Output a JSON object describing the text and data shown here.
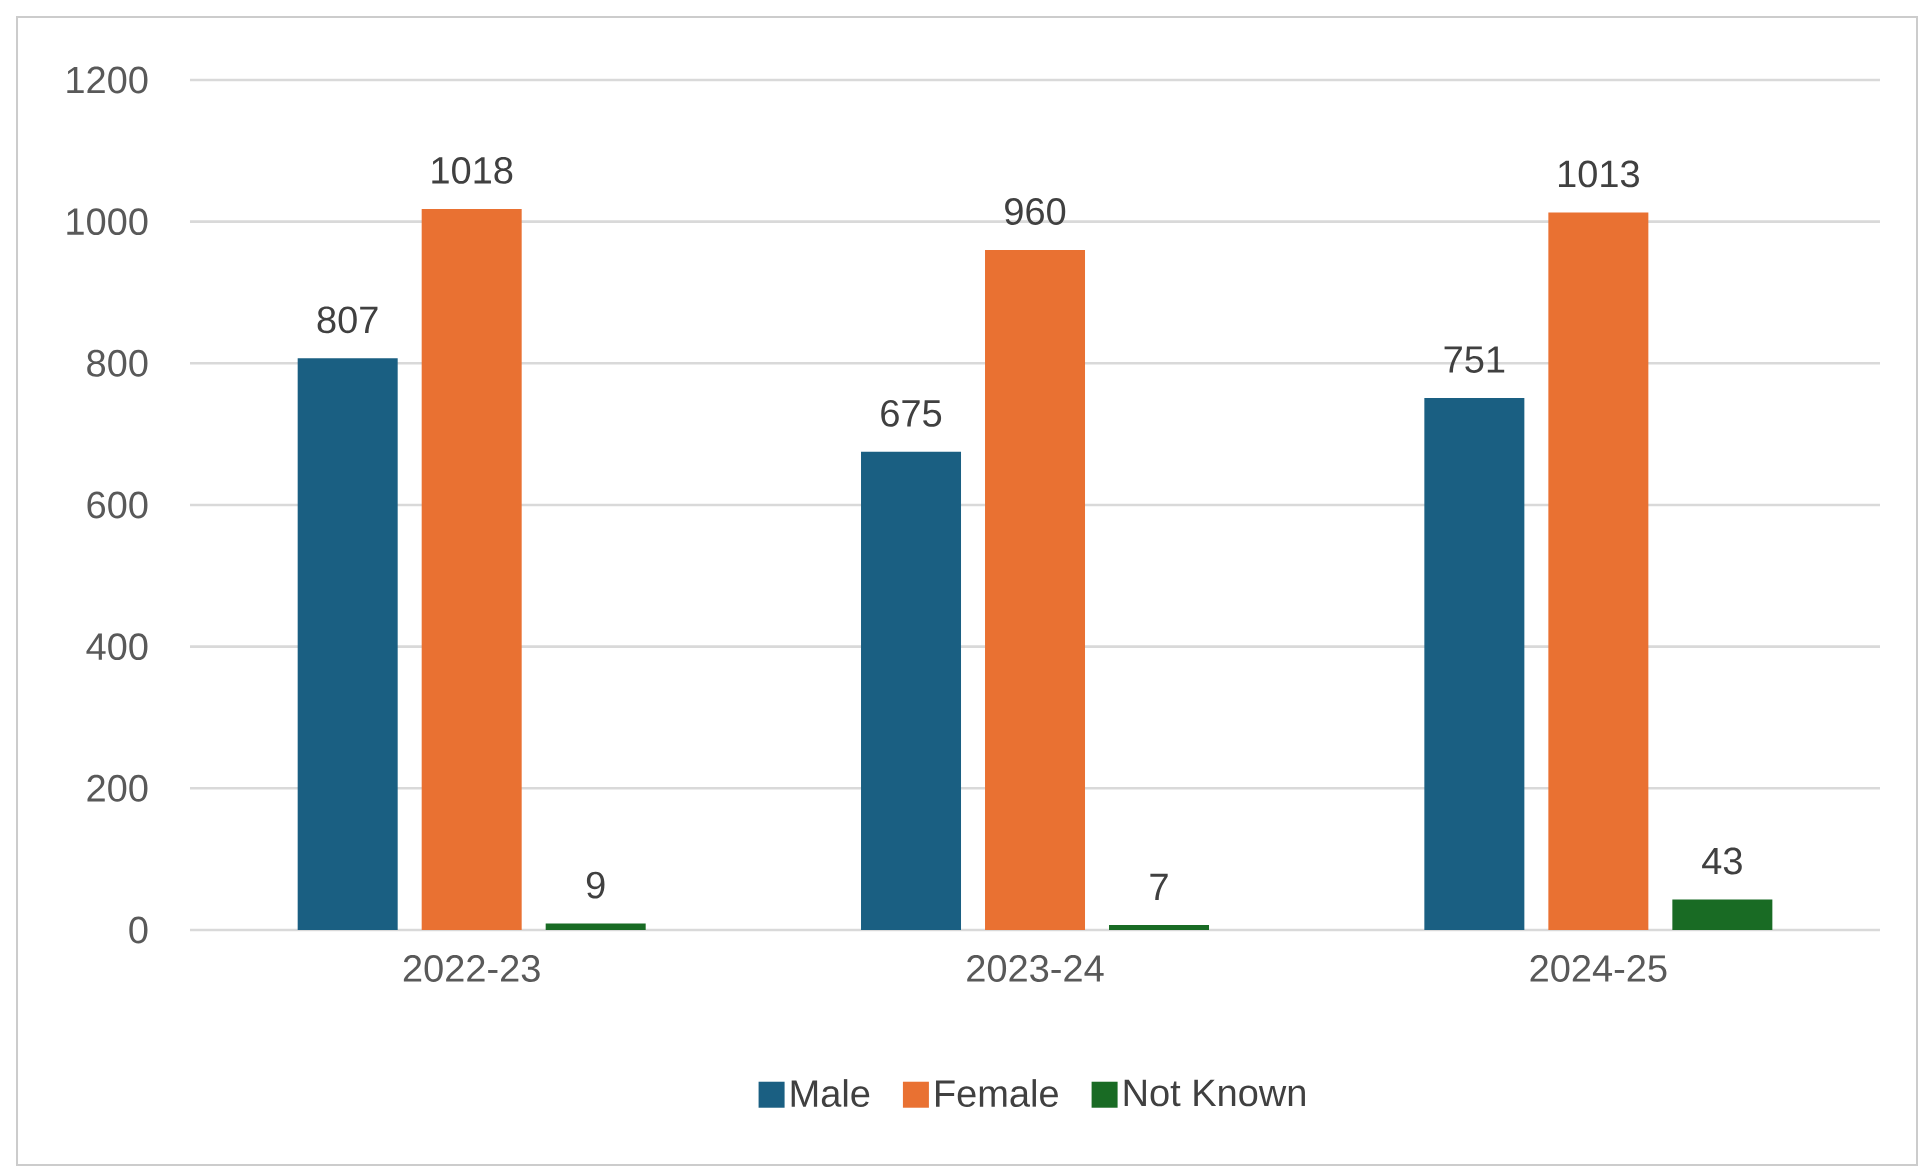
{
  "chart_data": {
    "type": "bar",
    "categories": [
      "2022-23",
      "2023-24",
      "2024-25"
    ],
    "series": [
      {
        "name": "Male",
        "color": "#1a5f82",
        "values": [
          807,
          675,
          751
        ]
      },
      {
        "name": "Female",
        "color": "#e97132",
        "values": [
          1018,
          960,
          1013
        ]
      },
      {
        "name": "Not Known",
        "color": "#196b24",
        "values": [
          9,
          7,
          43
        ]
      }
    ],
    "ylim": [
      0,
      1200
    ],
    "yticks": [
      0,
      200,
      400,
      600,
      800,
      1000,
      1200
    ],
    "grid": "y",
    "legend": "bottom",
    "data_labels": true
  }
}
